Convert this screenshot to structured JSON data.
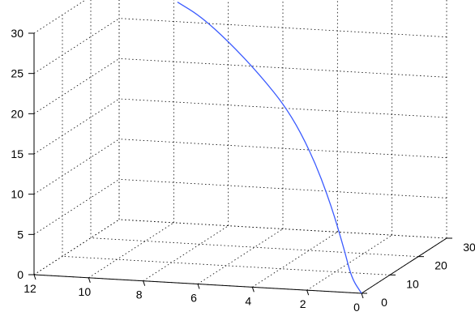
{
  "chart_data": {
    "type": "line",
    "projection": "3d",
    "grid": true,
    "axes": {
      "x": {
        "ticks": [
          12,
          10,
          8,
          6,
          4,
          2,
          0
        ],
        "range": [
          0,
          12
        ]
      },
      "y": {
        "ticks": [
          0,
          10,
          20,
          30
        ],
        "range": [
          0,
          30
        ]
      },
      "z": {
        "ticks": [
          0,
          5,
          10,
          15,
          20,
          25,
          30
        ],
        "range": [
          0,
          30
        ]
      }
    },
    "series": [
      {
        "color": "#3b5bff",
        "x": [
          0,
          0.5,
          1.0,
          1.8,
          2.8,
          4.0,
          5.4,
          6.9,
          8.3,
          9.5
        ],
        "y": [
          0,
          1.3,
          3.5,
          6.3,
          9.5,
          12.8,
          16.0,
          19.5,
          23.0,
          26.5
        ],
        "z": [
          0,
          1.5,
          4.5,
          9.5,
          14.5,
          19.0,
          22.5,
          25.5,
          27.6,
          28.3
        ]
      }
    ],
    "marker": {
      "icon": "quadcopter-icon",
      "at": {
        "x": 9.5,
        "y": 26.5,
        "z": 28.3
      }
    }
  }
}
